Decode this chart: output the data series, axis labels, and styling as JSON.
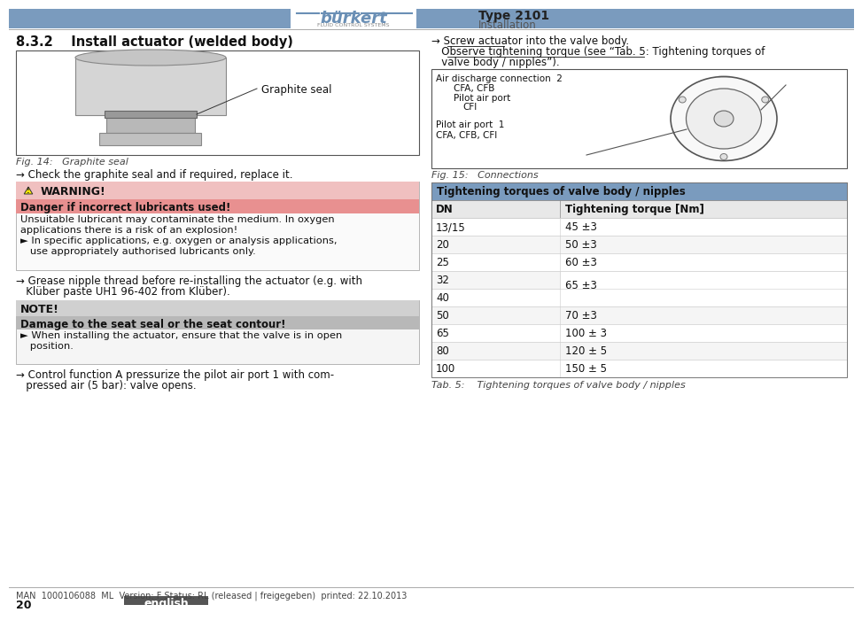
{
  "page_bg": "#ffffff",
  "header_bar_color": "#7a9bbe",
  "type_text": "Type 2101",
  "section_text": "Installation",
  "logo_text": "bürkert",
  "logo_sub": "FLUID CONTROL SYSTEMS",
  "logo_color": "#6a8fb5",
  "section_title": "8.3.2    Install actuator (welded body)",
  "fig14_caption": "Fig. 14:   Graphite seal",
  "graphite_label": "Graphite seal",
  "check_text": "→ Check the graphite seal and if required, replace it.",
  "warning_title": "WARNING!",
  "danger_title": "Danger if incorrect lubricants used!",
  "danger_text1": "Unsuitable lubricant may contaminate the medium. In oxygen",
  "danger_text2": "applications there is a risk of an explosion!",
  "danger_bullet1": "► In specific applications, e.g. oxygen or analysis applications,",
  "danger_bullet2": "   use appropriately authorised lubricants only.",
  "grease_text1": "→ Grease nipple thread before re-installing the actuator (e.g. with",
  "grease_text2": "   Klüber paste UH1 96-402 from Klüber).",
  "note_title": "NOTE!",
  "damage_title": "Damage to the seat seal or the seat contour!",
  "damage_bullet1": "► When installing the actuator, ensure that the valve is in open",
  "damage_bullet2": "   position.",
  "control_text1": "→ Control function A pressurize the pilot air port 1 with com-",
  "control_text2": "   pressed air (5 bar): valve opens.",
  "screw_text1": "→ Screw actuator into the valve body.",
  "screw_text2": "   Observe tightening torque (see “Tab. 5: Tightening torques of",
  "screw_text3": "   valve body / nipples”).",
  "fig15_caption": "Fig. 15:   Connections",
  "table_header": "Tightening torques of valve body / nipples",
  "table_col1": "DN",
  "table_col2": "Tightening torque [Nm]",
  "table_rows": [
    [
      "13/15",
      "45 ±3"
    ],
    [
      "20",
      "50 ±3"
    ],
    [
      "25",
      "60 ±3"
    ],
    [
      "32",
      ""
    ],
    [
      "40",
      "65 ±3"
    ],
    [
      "50",
      "70 ±3"
    ],
    [
      "65",
      "100 ± 3"
    ],
    [
      "80",
      "120 ± 5"
    ],
    [
      "100",
      "150 ± 5"
    ]
  ],
  "table_caption": "Tab. 5:    Tightening torques of valve body / nipples",
  "footer_text": "MAN  1000106088  ML  Version: F Status: RL (released | freigegeben)  printed: 22.10.2013",
  "page_num": "20",
  "lang_button_text": "english",
  "lang_button_color": "#555555",
  "divider_color": "#aaaaaa",
  "warn_pink": "#f0c8c8",
  "warn_red_header": "#e09090",
  "note_grey": "#d8d8d8",
  "note_dark_grey": "#b8b8b8",
  "table_header_blue": "#7a9bbe",
  "table_subheader_grey": "#e8e8e8"
}
